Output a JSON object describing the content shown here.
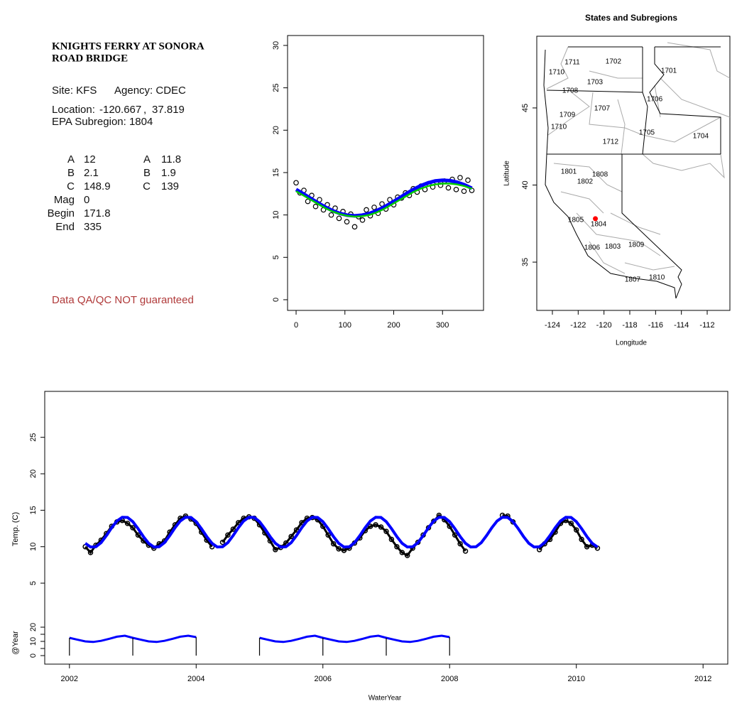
{
  "info": {
    "site_name": [
      "KNIGHTS FERRY AT SONORA",
      "ROAD BRIDGE"
    ],
    "site": "Site: KFS",
    "agency": "Agency: CDEC",
    "location": {
      "label": "Location:",
      "lon": -120.667,
      "separator": ",",
      "lat": 37.819
    },
    "subregion": "EPA Subregion: 1804",
    "params": [
      [
        "A",
        12,
        "A",
        11.8
      ],
      [
        "B",
        2.1,
        "B",
        1.9
      ],
      [
        "C",
        148.9,
        "C",
        139
      ],
      [
        "Mag",
        0
      ],
      [
        "Begin",
        171.8
      ],
      [
        "End",
        335
      ]
    ],
    "disclaimer": "Data QA/QC NOT guaranteed"
  },
  "chart_data": [
    {
      "type": "scatter",
      "xlim": [
        -17.5,
        384
      ],
      "ylim": [
        -1.26,
        31.17
      ],
      "xticks": [
        0,
        100,
        200,
        300
      ],
      "yticks": [
        0,
        5,
        10,
        15,
        20,
        25,
        30
      ],
      "points": {
        "color": "#000000",
        "x": [
          0,
          8,
          16,
          24,
          32,
          40,
          48,
          56,
          64,
          72,
          80,
          88,
          96,
          104,
          112,
          120,
          128,
          136,
          144,
          152,
          160,
          168,
          176,
          184,
          192,
          200,
          208,
          216,
          224,
          232,
          240,
          248,
          256,
          264,
          272,
          280,
          288,
          296,
          304,
          312,
          320,
          328,
          336,
          344,
          352,
          360
        ],
        "values": [
          13.8,
          12.6,
          12.9,
          11.6,
          12.3,
          11.0,
          11.8,
          10.6,
          11.2,
          10.0,
          10.8,
          9.6,
          10.4,
          9.2,
          10.1,
          8.6,
          9.8,
          9.4,
          10.6,
          9.9,
          10.9,
          10.2,
          11.3,
          10.7,
          11.8,
          11.2,
          12.1,
          12.0,
          12.6,
          12.3,
          13.1,
          12.7,
          13.4,
          13.0,
          13.7,
          13.3,
          13.9,
          13.5,
          14.0,
          13.2,
          14.2,
          13.0,
          14.4,
          12.8,
          14.1,
          12.9
        ]
      },
      "series": [
        {
          "color": "#0000ff",
          "x": [
            0,
            15,
            30,
            45,
            60,
            75,
            90,
            105,
            120,
            135,
            150,
            165,
            180,
            195,
            210,
            225,
            240,
            255,
            270,
            285,
            300,
            315,
            330,
            345,
            360
          ],
          "values": [
            13.0,
            12.49,
            11.95,
            11.42,
            10.92,
            10.5,
            10.17,
            9.97,
            9.9,
            9.97,
            10.17,
            10.5,
            10.92,
            11.42,
            11.95,
            12.49,
            13.0,
            13.44,
            13.78,
            14.01,
            14.1,
            14.05,
            13.86,
            13.56,
            13.15
          ]
        },
        {
          "color": "#00cc00",
          "x": [
            0,
            15,
            30,
            45,
            60,
            75,
            90,
            105,
            120,
            135,
            150,
            165,
            180,
            195,
            210,
            225,
            240,
            255,
            270,
            285,
            300,
            315,
            330,
            345,
            360
          ],
          "values": [
            12.8,
            12.3,
            11.8,
            11.3,
            10.8,
            10.4,
            10.1,
            9.9,
            9.8,
            9.85,
            10.0,
            10.3,
            10.7,
            11.2,
            11.7,
            12.2,
            12.7,
            13.1,
            13.4,
            13.6,
            13.7,
            13.7,
            13.6,
            13.4,
            13.1
          ]
        }
      ]
    },
    {
      "type": "map",
      "title": "States and Subregions",
      "xlabel": "Longitude",
      "ylabel": "Latitude",
      "xlim": [
        -125.21,
        -110.24
      ],
      "ylim": [
        31.87,
        49.65
      ],
      "xticks": [
        -124,
        -122,
        -120,
        -118,
        -116,
        -114,
        -112
      ],
      "yticks": [
        35,
        40,
        45
      ],
      "site_color": "#ff0000",
      "regions": [
        {
          "label": "1702",
          "lon": -119.27,
          "lat": 48.0
        },
        {
          "label": "1701",
          "lon": -114.97,
          "lat": 47.4
        },
        {
          "label": "1711",
          "lon": -122.46,
          "lat": 47.95
        },
        {
          "label": "1710",
          "lon": -123.67,
          "lat": 47.3
        },
        {
          "label": "1703",
          "lon": -120.7,
          "lat": 46.66
        },
        {
          "label": "1708",
          "lon": -122.62,
          "lat": 46.1
        },
        {
          "label": "1706",
          "lon": -116.07,
          "lat": 45.55
        },
        {
          "label": "1707",
          "lon": -120.15,
          "lat": 44.95
        },
        {
          "label": "1709",
          "lon": -122.84,
          "lat": 44.54
        },
        {
          "label": "1710",
          "lon": -123.5,
          "lat": 43.76
        },
        {
          "label": "1705",
          "lon": -116.68,
          "lat": 43.39
        },
        {
          "label": "1704",
          "lon": -112.5,
          "lat": 43.16
        },
        {
          "label": "1712",
          "lon": -119.49,
          "lat": 42.79
        },
        {
          "label": "1801",
          "lon": -122.73,
          "lat": 40.85
        },
        {
          "label": "1808",
          "lon": -120.31,
          "lat": 40.67
        },
        {
          "label": "1802",
          "lon": -121.47,
          "lat": 40.21
        },
        {
          "label": "1805",
          "lon": -122.18,
          "lat": 37.72
        },
        {
          "label": "1804",
          "lon": -120.42,
          "lat": 37.44
        },
        {
          "label": "1809",
          "lon": -117.5,
          "lat": 36.11
        },
        {
          "label": "1803",
          "lon": -119.32,
          "lat": 36.01
        },
        {
          "label": "1806",
          "lon": -120.92,
          "lat": 35.92
        },
        {
          "label": "1810",
          "lon": -115.9,
          "lat": 33.99
        },
        {
          "label": "1807",
          "lon": -117.78,
          "lat": 33.85
        }
      ]
    },
    {
      "type": "line",
      "ylabel": "Temp. (C)",
      "xlabel": "WaterYear",
      "xlim": [
        2001.61,
        2012.39
      ],
      "ylim": [
        -6.1,
        31.3
      ],
      "xticks": [
        2002,
        2004,
        2006,
        2008,
        2010,
        2012
      ],
      "yticks": [
        5,
        10,
        15,
        20,
        25
      ],
      "y2label": "@Year",
      "y2lim": [
        -6,
        186
      ],
      "y2ticks": [
        0,
        10,
        20
      ],
      "y2ticks_minor": [
        5,
        15
      ],
      "x": [
        2002.25,
        2002.333,
        2002.417,
        2002.5,
        2002.583,
        2002.667,
        2002.75,
        2002.833,
        2002.917,
        2003.0,
        2003.083,
        2003.167,
        2003.25,
        2003.333,
        2003.417,
        2003.5,
        2003.583,
        2003.667,
        2003.75,
        2003.833,
        2003.917,
        2004.0,
        2004.083,
        2004.167,
        2004.25,
        2004.333,
        2004.417,
        2004.5,
        2004.583,
        2004.667,
        2004.75,
        2004.833,
        2004.917,
        2005.0,
        2005.083,
        2005.167,
        2005.25,
        2005.333,
        2005.417,
        2005.5,
        2005.583,
        2005.667,
        2005.75,
        2005.833,
        2005.917,
        2006.0,
        2006.083,
        2006.167,
        2006.25,
        2006.333,
        2006.417,
        2006.5,
        2006.583,
        2006.667,
        2006.75,
        2006.833,
        2006.917,
        2007.0,
        2007.083,
        2007.167,
        2007.25,
        2007.333,
        2007.417,
        2007.5,
        2007.583,
        2007.667,
        2007.75,
        2007.833,
        2007.917,
        2008.0,
        2008.083,
        2008.167,
        2008.25,
        2008.333,
        2008.417,
        2008.5,
        2008.583,
        2008.667,
        2008.75,
        2008.833,
        2008.917,
        2009.0,
        2009.083,
        2009.167,
        2009.25,
        2009.333,
        2009.417,
        2009.5,
        2009.583,
        2009.667,
        2009.75,
        2009.833,
        2009.917,
        2010.0,
        2010.083,
        2010.167,
        2010.25,
        2010.333
      ],
      "series": [
        {
          "color": "#000000",
          "style": "points",
          "values": [
            10.0,
            9.2,
            10.2,
            10.9,
            11.8,
            12.8,
            13.4,
            13.6,
            13.2,
            12.6,
            11.6,
            10.8,
            10.2,
            9.8,
            10.4,
            10.8,
            12.0,
            13.0,
            13.9,
            14.2,
            13.8,
            13.2,
            12.0,
            10.9,
            10.0,
            null,
            10.6,
            11.6,
            12.4,
            13.3,
            13.9,
            14.1,
            13.9,
            13.0,
            11.9,
            10.8,
            9.6,
            9.9,
            10.5,
            11.4,
            12.3,
            13.3,
            13.9,
            14.0,
            13.7,
            12.8,
            11.6,
            10.4,
            9.7,
            9.5,
            9.8,
            10.5,
            11.2,
            12.2,
            12.8,
            13.0,
            12.7,
            12.1,
            11.0,
            10.0,
            9.2,
            8.8,
            9.8,
            10.6,
            11.6,
            12.6,
            13.5,
            14.3,
            13.7,
            12.8,
            11.6,
            10.4,
            9.4,
            null,
            null,
            null,
            null,
            null,
            null,
            14.3,
            14.2,
            13.4,
            null,
            null,
            null,
            null,
            9.6,
            10.4,
            11.0,
            12.0,
            13.2,
            13.6,
            13.2,
            12.3,
            11.0,
            10.0,
            10.2,
            9.8
          ]
        },
        {
          "color": "#0000ff",
          "values": [
            10.47,
            9.96,
            9.99,
            10.56,
            11.52,
            12.61,
            13.53,
            14.04,
            14.01,
            13.44,
            12.48,
            11.39,
            10.47,
            9.96,
            9.99,
            10.56,
            11.52,
            12.61,
            13.53,
            14.04,
            14.01,
            13.44,
            12.48,
            11.39,
            10.47,
            9.96,
            9.99,
            10.56,
            11.52,
            12.61,
            13.53,
            14.04,
            14.01,
            13.44,
            12.48,
            11.39,
            10.47,
            9.96,
            9.99,
            10.56,
            11.52,
            12.61,
            13.53,
            14.04,
            14.01,
            13.44,
            12.48,
            11.39,
            10.47,
            9.96,
            9.99,
            10.56,
            11.52,
            12.61,
            13.53,
            14.04,
            14.01,
            13.44,
            12.48,
            11.39,
            10.47,
            9.96,
            9.99,
            10.56,
            11.52,
            12.61,
            13.53,
            14.04,
            14.01,
            13.44,
            12.48,
            11.39,
            10.47,
            9.96,
            9.99,
            10.56,
            11.52,
            12.61,
            13.53,
            14.04,
            14.01,
            13.44,
            12.48,
            11.39,
            10.47,
            9.96,
            9.99,
            10.56,
            11.52,
            12.61,
            13.53,
            14.04,
            14.01,
            13.44,
            12.48,
            11.39,
            10.47,
            9.96
          ]
        }
      ],
      "annual": {
        "axis": "y2",
        "color": "#0000ff",
        "x": [
          2002,
          2002.125,
          2002.25,
          2002.375,
          2002.5,
          2002.625,
          2002.75,
          2002.875,
          2003,
          2003.125,
          2003.25,
          2003.375,
          2003.5,
          2003.625,
          2003.75,
          2003.875,
          2004,
          2004.5,
          2005,
          2005.125,
          2005.25,
          2005.375,
          2005.5,
          2005.625,
          2005.75,
          2005.875,
          2006,
          2006.125,
          2006.25,
          2006.375,
          2006.5,
          2006.625,
          2006.75,
          2006.875,
          2007,
          2007.125,
          2007.25,
          2007.375,
          2007.5,
          2007.625,
          2007.75,
          2007.875,
          2008
        ],
        "values": [
          12.5,
          11.2,
          10.0,
          9.6,
          10.4,
          11.8,
          13.3,
          14.0,
          12.5,
          11.2,
          10.0,
          9.6,
          10.4,
          11.8,
          13.3,
          14.0,
          13.0,
          null,
          12.5,
          11.2,
          10.0,
          9.6,
          10.4,
          11.8,
          13.3,
          14.0,
          12.5,
          11.2,
          10.0,
          9.6,
          10.4,
          11.8,
          13.3,
          14.0,
          12.5,
          11.2,
          10.0,
          9.6,
          10.4,
          11.8,
          13.3,
          14.0,
          13.0
        ]
      },
      "year_marks": {
        "axis": "y2",
        "color": "#000000",
        "x": [
          2002,
          2003,
          2004,
          2005,
          2006,
          2007,
          2008
        ],
        "values": [
          12.5,
          12.5,
          13.0,
          12.5,
          12.5,
          12.5,
          13.0
        ]
      }
    }
  ]
}
